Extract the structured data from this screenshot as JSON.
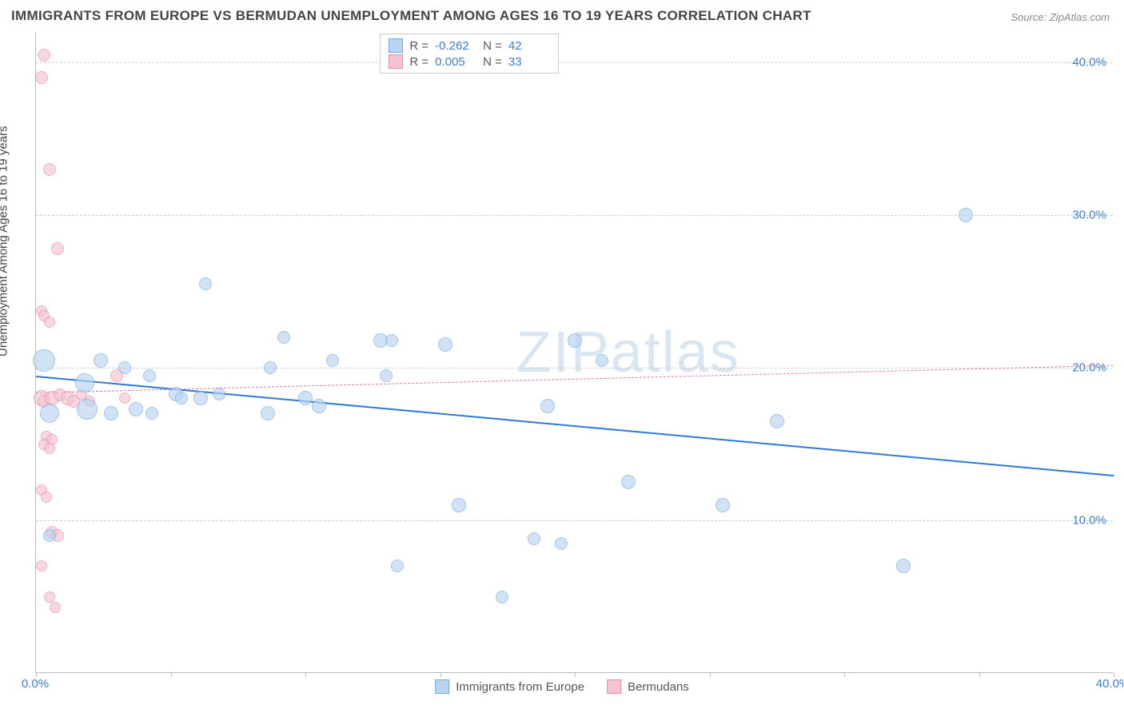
{
  "title": "IMMIGRANTS FROM EUROPE VS BERMUDAN UNEMPLOYMENT AMONG AGES 16 TO 19 YEARS CORRELATION CHART",
  "source": "Source: ZipAtlas.com",
  "ylabel": "Unemployment Among Ages 16 to 19 years",
  "watermark": "ZIPatlas",
  "chart": {
    "type": "scatter",
    "xlim": [
      0,
      40
    ],
    "ylim": [
      0,
      42
    ],
    "y_ticks": [
      10,
      20,
      30,
      40
    ],
    "y_tick_labels": [
      "10.0%",
      "20.0%",
      "30.0%",
      "40.0%"
    ],
    "x_ticks": [
      0,
      5,
      10,
      15,
      20,
      25,
      30,
      35,
      40
    ],
    "x_tick_labels_shown": {
      "0": "0.0%",
      "40": "40.0%"
    },
    "grid_color": "#d0d0d0",
    "background_color": "#ffffff",
    "axis_color": "#bbbbbb",
    "tick_label_color": "#3b7dd8",
    "tick_label_fontsize": 15
  },
  "series": [
    {
      "name": "Immigrants from Europe",
      "fill": "#b9d4f0",
      "stroke": "#6fa8e2",
      "fill_opacity": 0.65,
      "regression": {
        "y_at_x0": 19.5,
        "y_at_x40": 13.0,
        "color": "#2f78d6",
        "width": 2,
        "dash": "solid"
      },
      "points": [
        {
          "x": 0.3,
          "y": 20.5,
          "r": 14
        },
        {
          "x": 0.5,
          "y": 17.0,
          "r": 12
        },
        {
          "x": 0.5,
          "y": 9.0,
          "r": 8
        },
        {
          "x": 1.8,
          "y": 19.0,
          "r": 12
        },
        {
          "x": 1.9,
          "y": 17.3,
          "r": 13
        },
        {
          "x": 2.4,
          "y": 20.5,
          "r": 9
        },
        {
          "x": 2.8,
          "y": 17.0,
          "r": 9
        },
        {
          "x": 3.3,
          "y": 20.0,
          "r": 8
        },
        {
          "x": 3.7,
          "y": 17.3,
          "r": 9
        },
        {
          "x": 4.2,
          "y": 19.5,
          "r": 8
        },
        {
          "x": 4.3,
          "y": 17.0,
          "r": 8
        },
        {
          "x": 5.2,
          "y": 18.3,
          "r": 9
        },
        {
          "x": 5.4,
          "y": 18.0,
          "r": 8
        },
        {
          "x": 6.1,
          "y": 18.0,
          "r": 9
        },
        {
          "x": 6.3,
          "y": 25.5,
          "r": 8
        },
        {
          "x": 6.8,
          "y": 18.3,
          "r": 8
        },
        {
          "x": 8.6,
          "y": 17.0,
          "r": 9
        },
        {
          "x": 8.7,
          "y": 20.0,
          "r": 8
        },
        {
          "x": 9.2,
          "y": 22.0,
          "r": 8
        },
        {
          "x": 10.0,
          "y": 18.0,
          "r": 9
        },
        {
          "x": 10.5,
          "y": 17.5,
          "r": 9
        },
        {
          "x": 11.0,
          "y": 20.5,
          "r": 8
        },
        {
          "x": 12.8,
          "y": 21.8,
          "r": 9
        },
        {
          "x": 13.2,
          "y": 21.8,
          "r": 8
        },
        {
          "x": 13.0,
          "y": 19.5,
          "r": 8
        },
        {
          "x": 13.4,
          "y": 7.0,
          "r": 8
        },
        {
          "x": 15.2,
          "y": 21.5,
          "r": 9
        },
        {
          "x": 15.7,
          "y": 11.0,
          "r": 9
        },
        {
          "x": 17.3,
          "y": 5.0,
          "r": 8
        },
        {
          "x": 18.5,
          "y": 8.8,
          "r": 8
        },
        {
          "x": 19.0,
          "y": 17.5,
          "r": 9
        },
        {
          "x": 19.5,
          "y": 8.5,
          "r": 8
        },
        {
          "x": 20.0,
          "y": 21.8,
          "r": 9
        },
        {
          "x": 21.0,
          "y": 20.5,
          "r": 8
        },
        {
          "x": 22.0,
          "y": 12.5,
          "r": 9
        },
        {
          "x": 25.5,
          "y": 11.0,
          "r": 9
        },
        {
          "x": 27.5,
          "y": 16.5,
          "r": 9
        },
        {
          "x": 32.2,
          "y": 7.0,
          "r": 9
        },
        {
          "x": 34.5,
          "y": 30.0,
          "r": 9
        }
      ]
    },
    {
      "name": "Bermudans",
      "fill": "#f5c4d1",
      "stroke": "#e88aa6",
      "fill_opacity": 0.65,
      "regression": {
        "y_at_x0": 18.4,
        "y_at_x40": 20.2,
        "color": "#e07c98",
        "width": 1,
        "dash": "dashed"
      },
      "points": [
        {
          "x": 0.3,
          "y": 40.5,
          "r": 8
        },
        {
          "x": 0.2,
          "y": 39.0,
          "r": 8
        },
        {
          "x": 0.5,
          "y": 33.0,
          "r": 8
        },
        {
          "x": 0.8,
          "y": 27.8,
          "r": 8
        },
        {
          "x": 0.2,
          "y": 23.7,
          "r": 7
        },
        {
          "x": 0.3,
          "y": 23.4,
          "r": 7
        },
        {
          "x": 0.5,
          "y": 23.0,
          "r": 7
        },
        {
          "x": 0.2,
          "y": 18.0,
          "r": 10
        },
        {
          "x": 0.3,
          "y": 17.8,
          "r": 8
        },
        {
          "x": 0.6,
          "y": 18.0,
          "r": 9
        },
        {
          "x": 0.9,
          "y": 18.2,
          "r": 8
        },
        {
          "x": 1.2,
          "y": 18.0,
          "r": 9
        },
        {
          "x": 1.4,
          "y": 17.8,
          "r": 8
        },
        {
          "x": 1.7,
          "y": 18.2,
          "r": 7
        },
        {
          "x": 2.0,
          "y": 17.8,
          "r": 7
        },
        {
          "x": 0.4,
          "y": 15.5,
          "r": 7
        },
        {
          "x": 0.6,
          "y": 15.3,
          "r": 7
        },
        {
          "x": 0.3,
          "y": 15.0,
          "r": 7
        },
        {
          "x": 0.5,
          "y": 14.7,
          "r": 7
        },
        {
          "x": 0.2,
          "y": 12.0,
          "r": 7
        },
        {
          "x": 0.4,
          "y": 11.5,
          "r": 7
        },
        {
          "x": 0.6,
          "y": 9.2,
          "r": 8
        },
        {
          "x": 0.8,
          "y": 9.0,
          "r": 8
        },
        {
          "x": 0.2,
          "y": 7.0,
          "r": 7
        },
        {
          "x": 0.5,
          "y": 5.0,
          "r": 7
        },
        {
          "x": 0.7,
          "y": 4.3,
          "r": 7
        },
        {
          "x": 3.0,
          "y": 19.5,
          "r": 8
        },
        {
          "x": 3.3,
          "y": 18.0,
          "r": 7
        }
      ]
    }
  ],
  "stats_legend": {
    "rows": [
      {
        "swatch_fill": "#b9d4f0",
        "swatch_stroke": "#6fa8e2",
        "r_label": "R =",
        "r_val": "-0.262",
        "n_label": "N =",
        "n_val": "42"
      },
      {
        "swatch_fill": "#f5c4d1",
        "swatch_stroke": "#e88aa6",
        "r_label": "R =",
        "r_val": "0.005",
        "n_label": "N =",
        "n_val": "33"
      }
    ]
  },
  "bottom_legend": [
    {
      "swatch_fill": "#b9d4f0",
      "swatch_stroke": "#6fa8e2",
      "label": "Immigrants from Europe"
    },
    {
      "swatch_fill": "#f5c4d1",
      "swatch_stroke": "#e88aa6",
      "label": "Bermudans"
    }
  ]
}
